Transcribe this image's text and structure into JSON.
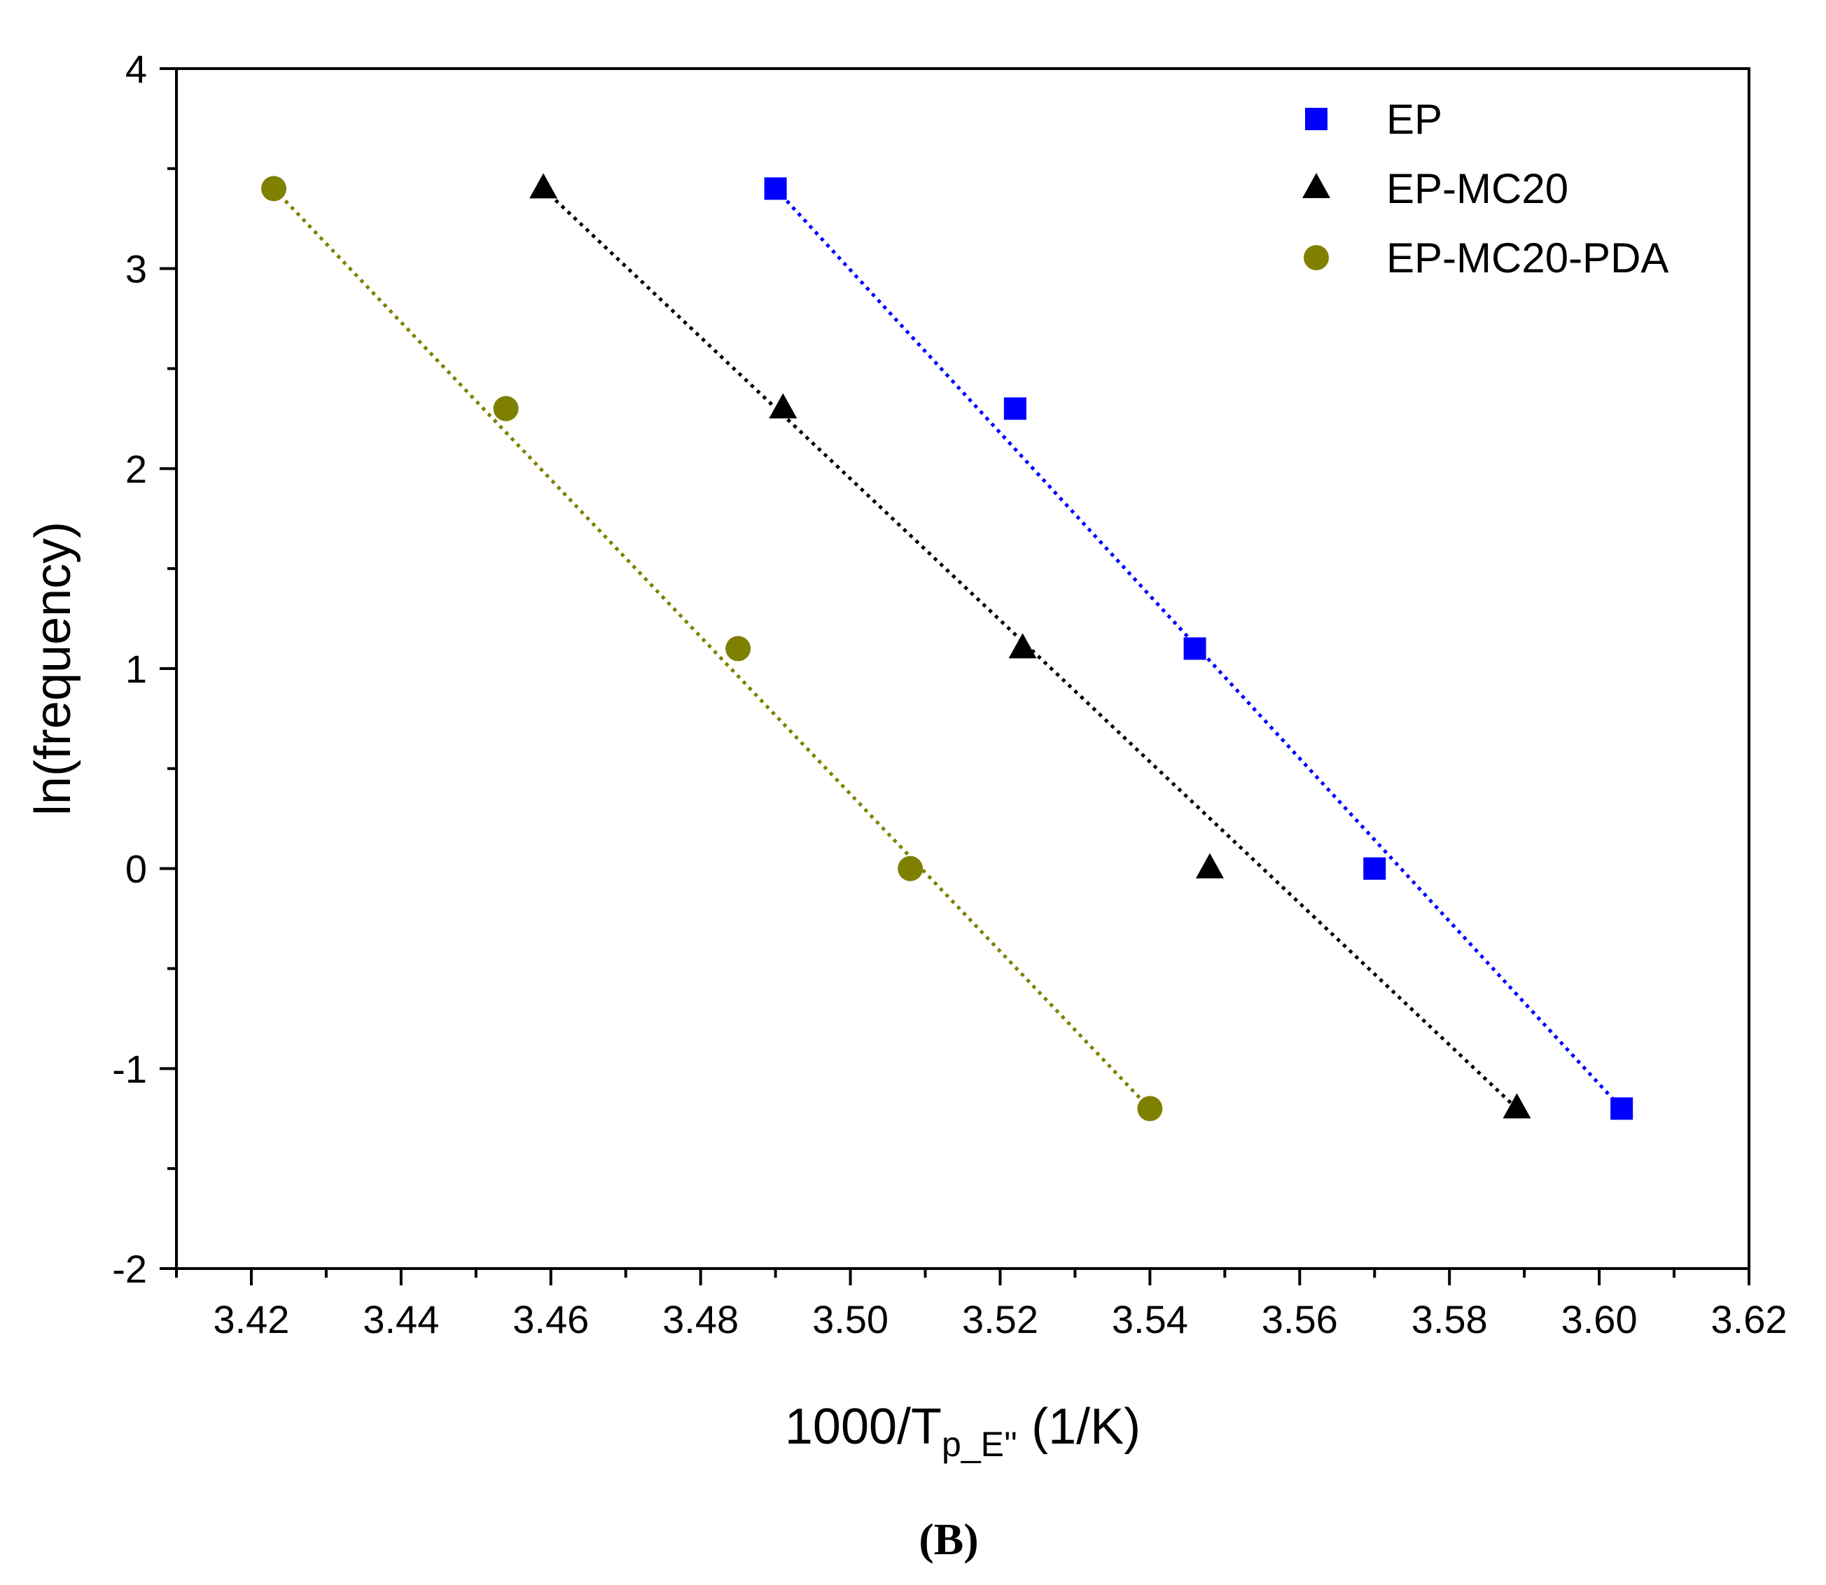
{
  "chart_data": {
    "type": "scatter",
    "xlabel": {
      "main": "1000/T",
      "sub": "p_E''",
      "suffix": " (1/K)"
    },
    "ylabel": "ln(frequency)",
    "xlim": [
      3.41,
      3.62
    ],
    "ylim": [
      -2,
      4
    ],
    "x_ticks": [
      3.42,
      3.44,
      3.46,
      3.48,
      3.5,
      3.52,
      3.54,
      3.56,
      3.58,
      3.6,
      3.62
    ],
    "x_tick_labels": [
      "3.42",
      "3.44",
      "3.46",
      "3.48",
      "3.50",
      "3.52",
      "3.54",
      "3.56",
      "3.58",
      "3.60",
      "3.62"
    ],
    "y_ticks": [
      -2,
      -1,
      0,
      1,
      2,
      3,
      4
    ],
    "y_tick_labels": [
      "-2",
      "-1",
      "0",
      "1",
      "2",
      "3",
      "4"
    ],
    "legend_position": "top-right",
    "series": [
      {
        "name": "EP",
        "marker": "square",
        "color": "#0000ff",
        "x": [
          3.49,
          3.522,
          3.546,
          3.57,
          3.603
        ],
        "y": [
          3.4,
          2.3,
          1.1,
          0.0,
          -1.2
        ],
        "fit": {
          "x": [
            3.49,
            3.603
          ],
          "y": [
            3.4,
            -1.2
          ]
        }
      },
      {
        "name": "EP-MC20",
        "marker": "triangle",
        "color": "#000000",
        "x": [
          3.459,
          3.491,
          3.523,
          3.548,
          3.589
        ],
        "y": [
          3.4,
          2.3,
          1.1,
          0.0,
          -1.2
        ],
        "fit": {
          "x": [
            3.459,
            3.589
          ],
          "y": [
            3.4,
            -1.2
          ]
        }
      },
      {
        "name": "EP-MC20-PDA",
        "marker": "circle",
        "color": "#808000",
        "x": [
          3.423,
          3.454,
          3.485,
          3.508,
          3.54
        ],
        "y": [
          3.4,
          2.3,
          1.1,
          0.0,
          -1.2
        ],
        "fit": {
          "x": [
            3.423,
            3.54
          ],
          "y": [
            3.4,
            -1.2
          ]
        }
      }
    ]
  },
  "panel_label": "(B)"
}
